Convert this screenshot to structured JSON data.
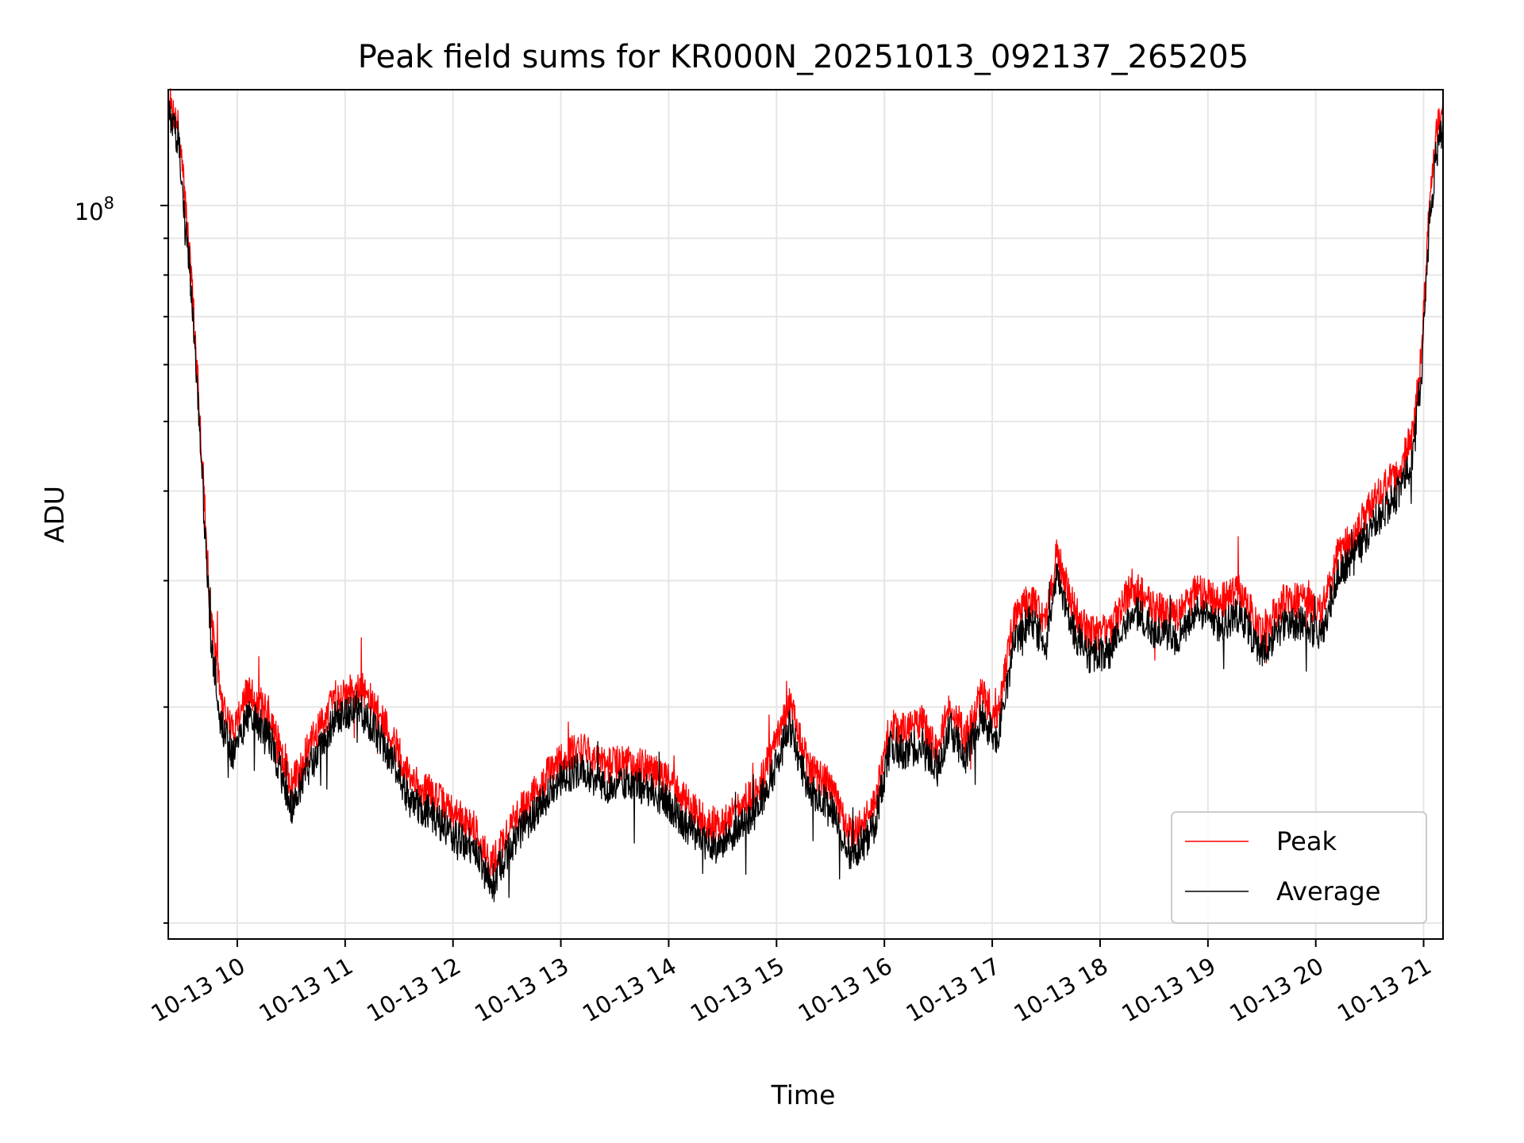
{
  "chart_data": {
    "type": "line",
    "title": "Peak field sums for KR000N_20251013_092137_265205",
    "xlabel": "Time",
    "ylabel": "ADU",
    "y_scale": "log",
    "y_tick_label": {
      "base": "10",
      "exponent": "8",
      "value": 100000000
    },
    "ylim": [
      9500000,
      145000000
    ],
    "x_start_hour": 9.36,
    "x_end_hour": 21.18,
    "x_ticks": [
      "10-13 10",
      "10-13 11",
      "10-13 12",
      "10-13 13",
      "10-13 14",
      "10-13 15",
      "10-13 16",
      "10-13 17",
      "10-13 18",
      "10-13 19",
      "10-13 20",
      "10-13 21"
    ],
    "x_tick_hours": [
      10,
      11,
      12,
      13,
      14,
      15,
      16,
      17,
      18,
      19,
      20,
      21
    ],
    "grid": true,
    "legend_position": "lower-right",
    "series": [
      {
        "name": "Peak",
        "color": "#ff0000",
        "x_hours": [
          9.36,
          9.45,
          9.55,
          9.65,
          9.75,
          9.85,
          9.95,
          10.1,
          10.3,
          10.5,
          10.7,
          10.9,
          11.1,
          11.2,
          11.45,
          11.6,
          11.8,
          12.0,
          12.2,
          12.35,
          12.55,
          12.8,
          13.0,
          13.2,
          13.4,
          13.6,
          13.8,
          14.0,
          14.2,
          14.4,
          14.6,
          14.8,
          15.0,
          15.12,
          15.3,
          15.5,
          15.7,
          15.9,
          16.05,
          16.2,
          16.35,
          16.5,
          16.6,
          16.75,
          16.9,
          17.05,
          17.2,
          17.35,
          17.5,
          17.6,
          17.75,
          17.9,
          18.1,
          18.3,
          18.5,
          18.7,
          18.9,
          19.1,
          19.3,
          19.5,
          19.7,
          19.9,
          20.05,
          20.2,
          20.35,
          20.5,
          20.65,
          20.78,
          20.9,
          20.98,
          21.05,
          21.12,
          21.18
        ],
        "values": [
          140000000,
          130000000,
          90000000,
          52000000,
          27000000,
          20500000,
          18500000,
          21000000,
          19500000,
          15500000,
          18000000,
          20500000,
          21500000,
          20800000,
          18000000,
          15800000,
          15200000,
          14200000,
          13600000,
          12000000,
          13800000,
          15500000,
          17000000,
          17500000,
          16500000,
          16800000,
          16500000,
          15800000,
          14500000,
          13600000,
          14200000,
          15200000,
          17800000,
          20200000,
          16500000,
          15500000,
          13200000,
          14500000,
          18800000,
          18500000,
          19000000,
          17500000,
          20200000,
          18200000,
          20800000,
          19200000,
          26500000,
          28500000,
          26200000,
          33000000,
          27500000,
          25200000,
          25800000,
          29500000,
          27500000,
          26800000,
          29000000,
          28000000,
          29000000,
          25500000,
          28000000,
          28200000,
          27000000,
          32500000,
          34500000,
          38000000,
          40500000,
          43000000,
          48000000,
          62000000,
          100000000,
          128000000,
          138000000
        ]
      },
      {
        "name": "Average",
        "color": "#000000",
        "x_hours": [
          9.36,
          9.45,
          9.55,
          9.65,
          9.75,
          9.85,
          9.95,
          10.1,
          10.3,
          10.5,
          10.7,
          10.9,
          11.1,
          11.2,
          11.45,
          11.6,
          11.8,
          12.0,
          12.2,
          12.35,
          12.55,
          12.8,
          13.0,
          13.2,
          13.4,
          13.6,
          13.8,
          14.0,
          14.2,
          14.4,
          14.6,
          14.8,
          15.0,
          15.12,
          15.3,
          15.5,
          15.7,
          15.9,
          16.05,
          16.2,
          16.35,
          16.5,
          16.6,
          16.75,
          16.9,
          17.05,
          17.2,
          17.35,
          17.5,
          17.6,
          17.75,
          17.9,
          18.1,
          18.3,
          18.5,
          18.7,
          18.9,
          19.1,
          19.3,
          19.5,
          19.7,
          19.9,
          20.05,
          20.2,
          20.35,
          20.5,
          20.65,
          20.78,
          20.9,
          20.98,
          21.05,
          21.12,
          21.18
        ],
        "values": [
          135000000,
          124000000,
          85000000,
          49000000,
          25500000,
          19000000,
          17200000,
          19500000,
          18200000,
          14500000,
          16800000,
          19200000,
          20000000,
          19300000,
          16800000,
          14700000,
          14200000,
          13200000,
          12700000,
          11300000,
          12900000,
          14500000,
          15900000,
          16400000,
          15400000,
          15700000,
          15400000,
          14700000,
          13500000,
          12700000,
          13300000,
          14200000,
          16600000,
          18800000,
          15400000,
          14500000,
          12300000,
          13500000,
          17500000,
          17300000,
          17700000,
          16300000,
          18800000,
          17000000,
          19400000,
          17900000,
          24500000,
          26500000,
          24300000,
          30500000,
          25500000,
          23500000,
          24000000,
          27400000,
          25600000,
          24900000,
          27000000,
          26000000,
          27000000,
          23700000,
          26000000,
          26200000,
          25100000,
          30300000,
          32100000,
          35400000,
          37700000,
          40000000,
          44600000,
          57700000,
          93000000,
          119000000,
          128000000
        ]
      }
    ]
  }
}
